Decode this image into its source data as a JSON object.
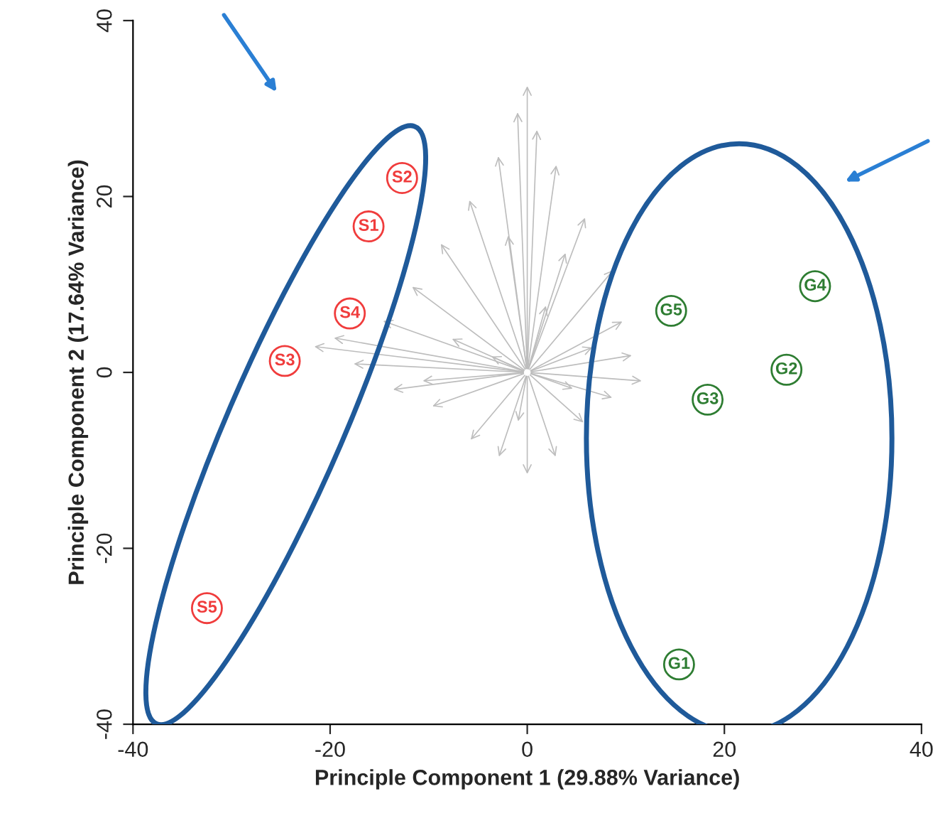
{
  "chart_data": {
    "type": "scatter",
    "xlabel": "Principle Component 1 (29.88% Variance)",
    "ylabel": "Principle Component 2 (17.64% Variance)",
    "xlim": [
      -40,
      40
    ],
    "ylim": [
      -40,
      40
    ],
    "xticks": [
      -40,
      -20,
      0,
      20,
      40
    ],
    "yticks": [
      -40,
      -20,
      0,
      20,
      40
    ],
    "grid": false,
    "legend": false,
    "series": [
      {
        "color": "#f03c3c",
        "x": [
          -16.1,
          -12.7,
          -24.6,
          -18,
          -32.5
        ],
        "values": [
          16.6,
          22.1,
          1.3,
          6.7,
          -26.8
        ]
      },
      {
        "color": "#2e7d32",
        "x": [
          15.4,
          26.3,
          18.3,
          29.2,
          14.6
        ],
        "values": [
          -33.2,
          0.3,
          -3.1,
          9.8,
          7.0
        ]
      }
    ],
    "annotations": [
      {
        "text": "S1",
        "x": -16.1,
        "y": 16.6
      },
      {
        "text": "S2",
        "x": -12.7,
        "y": 22.1
      },
      {
        "text": "S3",
        "x": -24.6,
        "y": 1.3
      },
      {
        "text": "S4",
        "x": -18,
        "y": 6.7
      },
      {
        "text": "S5",
        "x": -32.5,
        "y": -26.8
      },
      {
        "text": "G1",
        "x": 15.4,
        "y": -33.2
      },
      {
        "text": "G2",
        "x": 26.3,
        "y": 0.3
      },
      {
        "text": "G3",
        "x": 18.3,
        "y": -3.1
      },
      {
        "text": "G4",
        "x": 29.2,
        "y": 9.8
      },
      {
        "text": "G5",
        "x": 14.6,
        "y": 7.0
      }
    ]
  }
}
